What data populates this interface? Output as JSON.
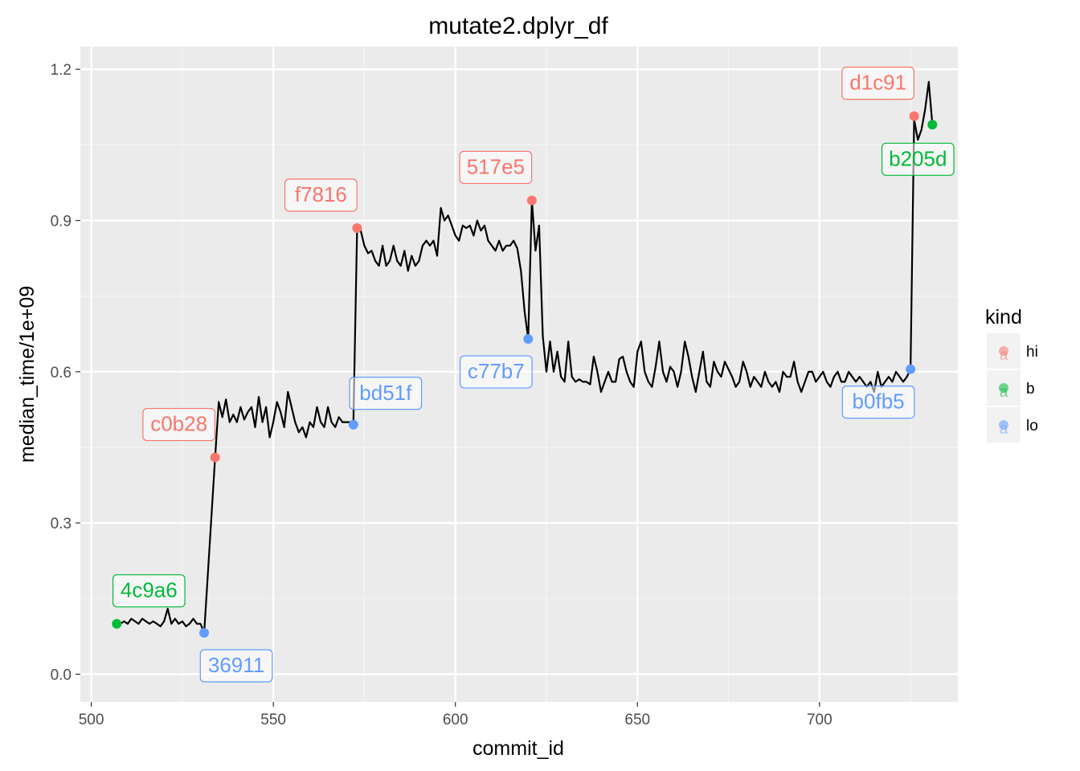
{
  "chart_data": {
    "type": "line",
    "title": "mutate2.dplyr_df",
    "xlabel": "commit_id",
    "ylabel": "median_time/1e+09",
    "xlim": [
      497,
      738
    ],
    "ylim": [
      -0.055,
      1.245
    ],
    "x_ticks": [
      500,
      550,
      600,
      650,
      700
    ],
    "x_tick_labels": [
      "500",
      "550",
      "600",
      "650",
      "700"
    ],
    "y_ticks": [
      0.0,
      0.3,
      0.6,
      0.9,
      1.2
    ],
    "y_tick_labels": [
      "0.0",
      "0.3",
      "0.6",
      "0.9",
      "1.2"
    ],
    "grid": true,
    "legend": {
      "title": "kind",
      "position": "right",
      "entries": [
        {
          "label": "hi",
          "color": "#F8766D"
        },
        {
          "label": "b",
          "color": "#00BA38"
        },
        {
          "label": "lo",
          "color": "#619CFF"
        }
      ]
    },
    "line_color": "#000000",
    "series": [
      {
        "values": [
          [
            507,
            0.1
          ],
          [
            508,
            0.1
          ],
          [
            509,
            0.105
          ],
          [
            510,
            0.1
          ],
          [
            511,
            0.11
          ],
          [
            512,
            0.105
          ],
          [
            513,
            0.1
          ],
          [
            514,
            0.11
          ],
          [
            515,
            0.105
          ],
          [
            516,
            0.1
          ],
          [
            517,
            0.105
          ],
          [
            518,
            0.1
          ],
          [
            519,
            0.095
          ],
          [
            520,
            0.105
          ],
          [
            521,
            0.13
          ],
          [
            522,
            0.1
          ],
          [
            523,
            0.11
          ],
          [
            524,
            0.1
          ],
          [
            525,
            0.105
          ],
          [
            526,
            0.095
          ],
          [
            527,
            0.1
          ],
          [
            528,
            0.11
          ],
          [
            529,
            0.1
          ],
          [
            530,
            0.1
          ],
          [
            531,
            0.082
          ],
          [
            534,
            0.43
          ],
          [
            535,
            0.54
          ],
          [
            536,
            0.51
          ],
          [
            537,
            0.545
          ],
          [
            538,
            0.5
          ],
          [
            539,
            0.515
          ],
          [
            540,
            0.5
          ],
          [
            541,
            0.53
          ],
          [
            542,
            0.505
          ],
          [
            543,
            0.52
          ],
          [
            544,
            0.53
          ],
          [
            545,
            0.49
          ],
          [
            546,
            0.55
          ],
          [
            547,
            0.5
          ],
          [
            548,
            0.53
          ],
          [
            549,
            0.47
          ],
          [
            550,
            0.5
          ],
          [
            551,
            0.54
          ],
          [
            552,
            0.52
          ],
          [
            553,
            0.49
          ],
          [
            554,
            0.56
          ],
          [
            555,
            0.53
          ],
          [
            556,
            0.5
          ],
          [
            557,
            0.48
          ],
          [
            558,
            0.49
          ],
          [
            559,
            0.47
          ],
          [
            560,
            0.5
          ],
          [
            561,
            0.49
          ],
          [
            562,
            0.53
          ],
          [
            563,
            0.5
          ],
          [
            564,
            0.49
          ],
          [
            565,
            0.53
          ],
          [
            566,
            0.5
          ],
          [
            567,
            0.49
          ],
          [
            568,
            0.51
          ],
          [
            569,
            0.5
          ],
          [
            570,
            0.5
          ],
          [
            571,
            0.5
          ],
          [
            572,
            0.5
          ],
          [
            573,
            0.885
          ],
          [
            574,
            0.88
          ],
          [
            575,
            0.85
          ],
          [
            576,
            0.835
          ],
          [
            577,
            0.84
          ],
          [
            578,
            0.82
          ],
          [
            579,
            0.81
          ],
          [
            580,
            0.85
          ],
          [
            581,
            0.81
          ],
          [
            582,
            0.82
          ],
          [
            583,
            0.85
          ],
          [
            584,
            0.82
          ],
          [
            585,
            0.81
          ],
          [
            586,
            0.84
          ],
          [
            587,
            0.8
          ],
          [
            588,
            0.83
          ],
          [
            589,
            0.81
          ],
          [
            590,
            0.82
          ],
          [
            591,
            0.85
          ],
          [
            592,
            0.86
          ],
          [
            593,
            0.85
          ],
          [
            594,
            0.86
          ],
          [
            595,
            0.83
          ],
          [
            596,
            0.925
          ],
          [
            597,
            0.9
          ],
          [
            598,
            0.91
          ],
          [
            599,
            0.89
          ],
          [
            600,
            0.87
          ],
          [
            601,
            0.86
          ],
          [
            602,
            0.89
          ],
          [
            603,
            0.885
          ],
          [
            604,
            0.89
          ],
          [
            605,
            0.87
          ],
          [
            606,
            0.9
          ],
          [
            607,
            0.88
          ],
          [
            608,
            0.89
          ],
          [
            609,
            0.86
          ],
          [
            610,
            0.85
          ],
          [
            611,
            0.84
          ],
          [
            612,
            0.86
          ],
          [
            613,
            0.84
          ],
          [
            614,
            0.85
          ],
          [
            615,
            0.85
          ],
          [
            616,
            0.86
          ],
          [
            617,
            0.845
          ],
          [
            618,
            0.8
          ],
          [
            619,
            0.72
          ],
          [
            620,
            0.665
          ],
          [
            621,
            0.94
          ],
          [
            622,
            0.84
          ],
          [
            623,
            0.89
          ],
          [
            624,
            0.67
          ],
          [
            625,
            0.6
          ],
          [
            626,
            0.66
          ],
          [
            627,
            0.6
          ],
          [
            628,
            0.64
          ],
          [
            629,
            0.59
          ],
          [
            630,
            0.58
          ],
          [
            631,
            0.66
          ],
          [
            632,
            0.59
          ],
          [
            633,
            0.58
          ],
          [
            634,
            0.585
          ],
          [
            635,
            0.58
          ],
          [
            636,
            0.58
          ],
          [
            637,
            0.575
          ],
          [
            638,
            0.63
          ],
          [
            639,
            0.6
          ],
          [
            640,
            0.56
          ],
          [
            641,
            0.58
          ],
          [
            642,
            0.6
          ],
          [
            643,
            0.58
          ],
          [
            644,
            0.58
          ],
          [
            645,
            0.625
          ],
          [
            646,
            0.63
          ],
          [
            647,
            0.6
          ],
          [
            648,
            0.58
          ],
          [
            649,
            0.57
          ],
          [
            650,
            0.64
          ],
          [
            651,
            0.66
          ],
          [
            652,
            0.6
          ],
          [
            653,
            0.58
          ],
          [
            654,
            0.57
          ],
          [
            655,
            0.61
          ],
          [
            656,
            0.66
          ],
          [
            657,
            0.6
          ],
          [
            658,
            0.58
          ],
          [
            659,
            0.61
          ],
          [
            660,
            0.6
          ],
          [
            661,
            0.57
          ],
          [
            662,
            0.6
          ],
          [
            663,
            0.66
          ],
          [
            664,
            0.63
          ],
          [
            665,
            0.59
          ],
          [
            666,
            0.56
          ],
          [
            667,
            0.6
          ],
          [
            668,
            0.64
          ],
          [
            669,
            0.58
          ],
          [
            670,
            0.57
          ],
          [
            671,
            0.62
          ],
          [
            672,
            0.6
          ],
          [
            673,
            0.59
          ],
          [
            674,
            0.62
          ],
          [
            675,
            0.605
          ],
          [
            676,
            0.59
          ],
          [
            677,
            0.57
          ],
          [
            678,
            0.58
          ],
          [
            679,
            0.62
          ],
          [
            680,
            0.6
          ],
          [
            681,
            0.57
          ],
          [
            682,
            0.59
          ],
          [
            683,
            0.58
          ],
          [
            684,
            0.57
          ],
          [
            685,
            0.6
          ],
          [
            686,
            0.58
          ],
          [
            687,
            0.57
          ],
          [
            688,
            0.58
          ],
          [
            689,
            0.56
          ],
          [
            690,
            0.6
          ],
          [
            691,
            0.59
          ],
          [
            692,
            0.59
          ],
          [
            693,
            0.62
          ],
          [
            694,
            0.58
          ],
          [
            695,
            0.56
          ],
          [
            696,
            0.58
          ],
          [
            697,
            0.6
          ],
          [
            698,
            0.6
          ],
          [
            699,
            0.58
          ],
          [
            700,
            0.59
          ],
          [
            701,
            0.6
          ],
          [
            702,
            0.58
          ],
          [
            703,
            0.57
          ],
          [
            704,
            0.59
          ],
          [
            705,
            0.6
          ],
          [
            706,
            0.58
          ],
          [
            707,
            0.58
          ],
          [
            708,
            0.6
          ],
          [
            709,
            0.59
          ],
          [
            710,
            0.58
          ],
          [
            711,
            0.59
          ],
          [
            712,
            0.58
          ],
          [
            713,
            0.57
          ],
          [
            714,
            0.58
          ],
          [
            715,
            0.56
          ],
          [
            716,
            0.6
          ],
          [
            717,
            0.57
          ],
          [
            718,
            0.58
          ],
          [
            719,
            0.59
          ],
          [
            720,
            0.58
          ],
          [
            721,
            0.6
          ],
          [
            722,
            0.59
          ],
          [
            723,
            0.58
          ],
          [
            724,
            0.59
          ],
          [
            725,
            0.605
          ],
          [
            726,
            1.1
          ],
          [
            727,
            1.06
          ],
          [
            728,
            1.08
          ],
          [
            729,
            1.12
          ],
          [
            730,
            1.175
          ],
          [
            731,
            1.09
          ]
        ]
      }
    ],
    "highlights": [
      {
        "label": "4c9a6",
        "kind": "b",
        "x": 507,
        "y": 0.1
      },
      {
        "label": "36911",
        "kind": "lo",
        "x": 531,
        "y": 0.082
      },
      {
        "label": "c0b28",
        "kind": "hi",
        "x": 534,
        "y": 0.43
      },
      {
        "label": "bd51f",
        "kind": "lo",
        "x": 572,
        "y": 0.495
      },
      {
        "label": "f7816",
        "kind": "hi",
        "x": 573,
        "y": 0.885
      },
      {
        "label": "517e5",
        "kind": "hi",
        "x": 621,
        "y": 0.94
      },
      {
        "label": "c77b7",
        "kind": "lo",
        "x": 620,
        "y": 0.665
      },
      {
        "label": "b0fb5",
        "kind": "lo",
        "x": 725,
        "y": 0.605
      },
      {
        "label": "d1c91",
        "kind": "hi",
        "x": 726,
        "y": 1.107
      },
      {
        "label": "b205d",
        "kind": "b",
        "x": 731,
        "y": 1.09
      }
    ]
  }
}
